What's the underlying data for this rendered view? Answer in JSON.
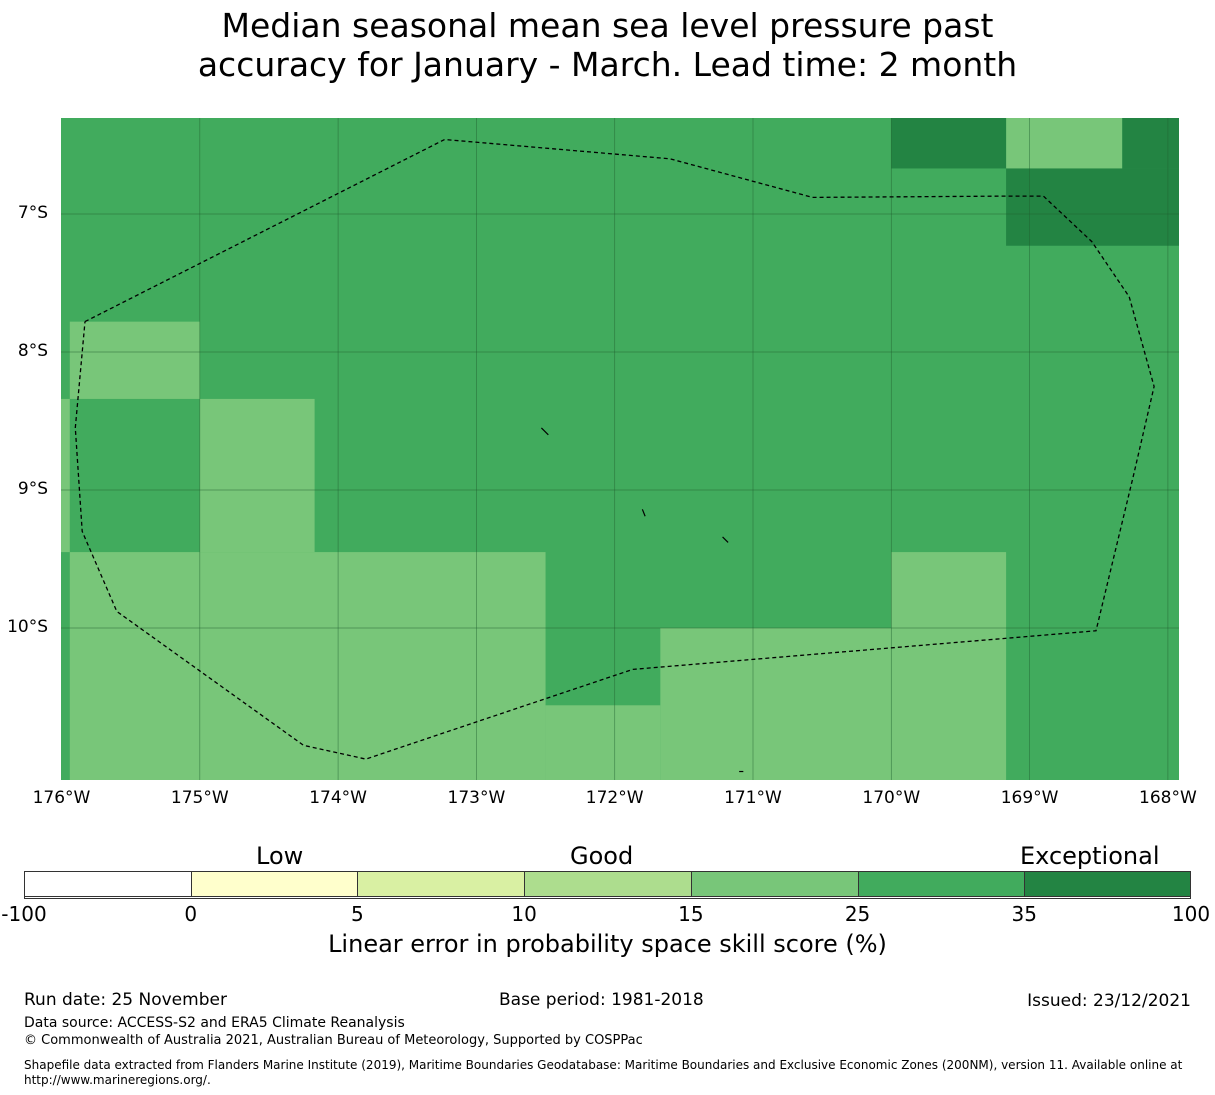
{
  "title": {
    "line1": "Median seasonal mean sea level pressure past",
    "line2": "accuracy for January - March. Lead time: 2 month"
  },
  "map": {
    "lon_range": [
      -176.1,
      -168.0
    ],
    "lat_range": [
      -11.15,
      -6.3
    ],
    "y_ticks": [
      {
        "lat": -7,
        "label": "7°S"
      },
      {
        "lat": -8,
        "label": "8°S"
      },
      {
        "lat": -9,
        "label": "9°S"
      },
      {
        "lat": -10,
        "label": "10°S"
      }
    ],
    "x_ticks": [
      {
        "lon": -176,
        "label": "176°W"
      },
      {
        "lon": -175,
        "label": "175°W"
      },
      {
        "lon": -174,
        "label": "174°W"
      },
      {
        "lon": -173,
        "label": "173°W"
      },
      {
        "lon": -172,
        "label": "172°W"
      },
      {
        "lon": -171,
        "label": "171°W"
      },
      {
        "lon": -170,
        "label": "170°W"
      },
      {
        "lon": -169,
        "label": "169°W"
      },
      {
        "lon": -168,
        "label": "168°W"
      }
    ],
    "grid": true,
    "colors": {
      "c15": "#78c679",
      "c25": "#41ab5d",
      "c35": "#238443"
    },
    "base_class": "c25",
    "cells": [
      {
        "lon": [
          -169.17,
          -168.33
        ],
        "lat": [
          -6.67,
          -6.3
        ],
        "cls": "c15"
      },
      {
        "lon": [
          -170.0,
          -169.17
        ],
        "lat": [
          -6.67,
          -6.3
        ],
        "cls": "c35"
      },
      {
        "lon": [
          -168.33,
          -167.8
        ],
        "lat": [
          -6.67,
          -6.3
        ],
        "cls": "c35"
      },
      {
        "lon": [
          -169.17,
          -167.8
        ],
        "lat": [
          -7.23,
          -6.67
        ],
        "cls": "c35"
      },
      {
        "lon": [
          -175.94,
          -175.0
        ],
        "lat": [
          -8.34,
          -7.78
        ],
        "cls": "c15"
      },
      {
        "lon": [
          -176.1,
          -175.94
        ],
        "lat": [
          -9.45,
          -8.34
        ],
        "cls": "c15"
      },
      {
        "lon": [
          -175.0,
          -174.17
        ],
        "lat": [
          -9.45,
          -8.34
        ],
        "cls": "c15"
      },
      {
        "lon": [
          -175.94,
          -172.5
        ],
        "lat": [
          -11.15,
          -9.45
        ],
        "cls": "c15"
      },
      {
        "lon": [
          -172.5,
          -171.67
        ],
        "lat": [
          -11.15,
          -10.56
        ],
        "cls": "c15"
      },
      {
        "lon": [
          -171.67,
          -170.0
        ],
        "lat": [
          -11.15,
          -10.0
        ],
        "cls": "c15"
      },
      {
        "lon": [
          -170.0,
          -169.17
        ],
        "lat": [
          -11.15,
          -9.45
        ],
        "cls": "c15"
      }
    ],
    "eez_boundary": [
      [
        -175.83,
        -7.78
      ],
      [
        -173.23,
        -6.46
      ],
      [
        -171.6,
        -6.6
      ],
      [
        -170.57,
        -6.88
      ],
      [
        -169.17,
        -6.87
      ],
      [
        -168.9,
        -6.87
      ],
      [
        -168.55,
        -7.2
      ],
      [
        -168.28,
        -7.6
      ],
      [
        -168.1,
        -8.25
      ],
      [
        -168.25,
        -8.9
      ],
      [
        -168.52,
        -10.02
      ],
      [
        -171.87,
        -10.3
      ],
      [
        -173.8,
        -10.95
      ],
      [
        -174.25,
        -10.85
      ],
      [
        -175.6,
        -9.88
      ],
      [
        -175.85,
        -9.3
      ],
      [
        -175.9,
        -8.55
      ],
      [
        -175.83,
        -7.78
      ]
    ],
    "islands": [
      [
        [
          -172.53,
          -8.55
        ],
        [
          -172.48,
          -8.6
        ]
      ],
      [
        [
          -171.8,
          -9.14
        ],
        [
          -171.78,
          -9.19
        ]
      ],
      [
        [
          -171.22,
          -9.34
        ],
        [
          -171.18,
          -9.38
        ]
      ],
      [
        [
          -171.1,
          -11.04
        ],
        [
          -171.07,
          -11.04
        ]
      ]
    ]
  },
  "colorbar": {
    "categories": [
      "Low",
      "Good",
      "Exceptional"
    ],
    "boundaries": [
      "-100",
      "0",
      "5",
      "10",
      "15",
      "25",
      "35",
      "100"
    ],
    "colors": [
      "#ffffff",
      "#ffffcc",
      "#d9f0a3",
      "#addd8e",
      "#78c679",
      "#41ab5d",
      "#238443"
    ],
    "label": "Linear error in probability space skill score (%)"
  },
  "footer": {
    "run_date": "Run date: 25 November",
    "base_period": "Base period: 1981-2018",
    "issued": "Issued: 23/12/2021",
    "data_source": "Data source: ACCESS-S2 and ERA5 Climate Reanalysis",
    "copyright": "© Commonwealth of Australia 2021, Australian Bureau of Meteorology, Supported by COSPPac",
    "shapefile_line1": "Shapefile data extracted from Flanders Marine Institute (2019), Maritime Boundaries Geodatabase: Maritime Boundaries and Exclusive Economic Zones (200NM), version 11. Available online at",
    "shapefile_line2": "http://www.marineregions.org/."
  }
}
